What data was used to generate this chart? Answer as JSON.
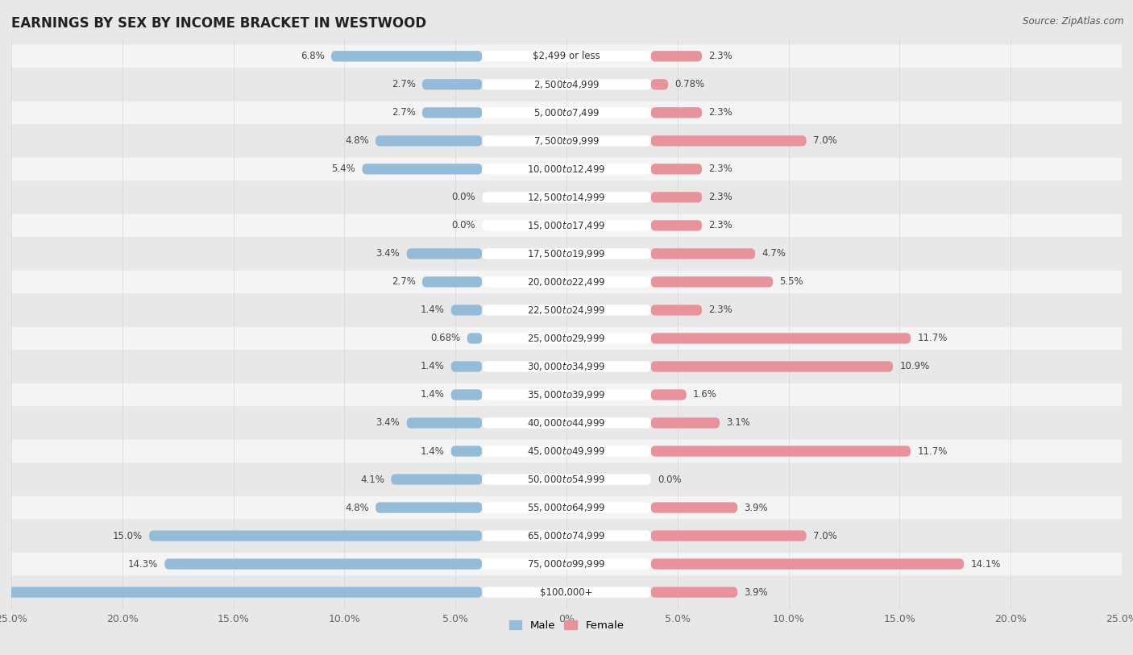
{
  "title": "EARNINGS BY SEX BY INCOME BRACKET IN WESTWOOD",
  "source": "Source: ZipAtlas.com",
  "categories": [
    "$2,499 or less",
    "$2,500 to $4,999",
    "$5,000 to $7,499",
    "$7,500 to $9,999",
    "$10,000 to $12,499",
    "$12,500 to $14,999",
    "$15,000 to $17,499",
    "$17,500 to $19,999",
    "$20,000 to $22,499",
    "$22,500 to $24,999",
    "$25,000 to $29,999",
    "$30,000 to $34,999",
    "$35,000 to $39,999",
    "$40,000 to $44,999",
    "$45,000 to $49,999",
    "$50,000 to $54,999",
    "$55,000 to $64,999",
    "$65,000 to $74,999",
    "$75,000 to $99,999",
    "$100,000+"
  ],
  "male_values": [
    6.8,
    2.7,
    2.7,
    4.8,
    5.4,
    0.0,
    0.0,
    3.4,
    2.7,
    1.4,
    0.68,
    1.4,
    1.4,
    3.4,
    1.4,
    4.1,
    4.8,
    15.0,
    14.3,
    23.8
  ],
  "female_values": [
    2.3,
    0.78,
    2.3,
    7.0,
    2.3,
    2.3,
    2.3,
    4.7,
    5.5,
    2.3,
    11.7,
    10.9,
    1.6,
    3.1,
    11.7,
    0.0,
    3.9,
    7.0,
    14.1,
    3.9
  ],
  "male_color": "#94bcd9",
  "female_color": "#e8929c",
  "male_label": "Male",
  "female_label": "Female",
  "xlim": 25.0,
  "row_color_even": "#e8e8e8",
  "row_color_odd": "#f4f4f4",
  "background_color": "#e8e8e8",
  "label_bg_color": "#ffffff",
  "title_fontsize": 12,
  "label_fontsize": 8.5,
  "tick_fontsize": 9,
  "source_fontsize": 8.5,
  "value_fontsize": 8.5
}
